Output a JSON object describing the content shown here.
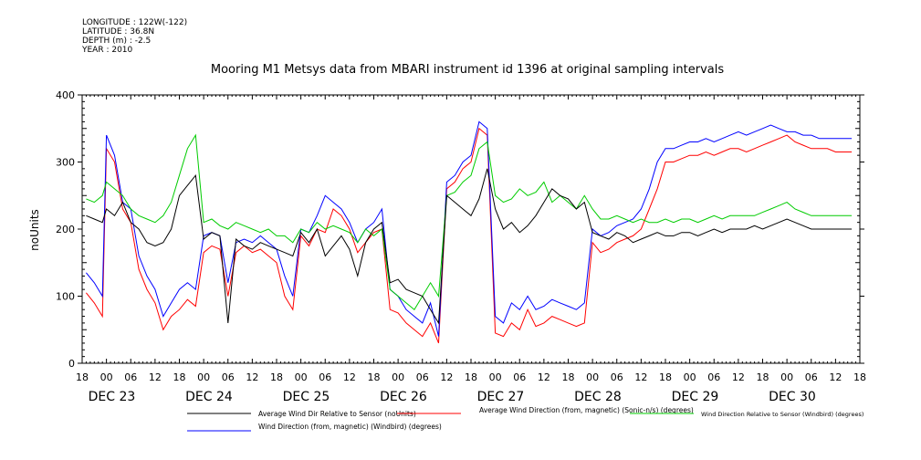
{
  "metadata": {
    "longitude": "LONGITUDE : 122W(-122)",
    "latitude": "LATITUDE : 36.8N",
    "depth": "DEPTH (m) : -2.5",
    "year": "YEAR : 2010"
  },
  "chart_data": {
    "type": "line",
    "title": "Mooring M1 Metsys data from MBARI instrument id 1396 at original sampling intervals",
    "ylabel": "noUnits",
    "ylim": [
      0,
      400
    ],
    "yticks": [
      0,
      100,
      200,
      300,
      400
    ],
    "xlim": [
      -6,
      186
    ],
    "x_unit": "hours since DEC 23 00:00",
    "x_hour_ticks": [
      "18",
      "00",
      "06",
      "12",
      "18",
      "00",
      "06",
      "12",
      "18",
      "00",
      "06",
      "12",
      "18",
      "00",
      "06",
      "12",
      "18",
      "00",
      "06",
      "12",
      "18",
      "00",
      "06",
      "12",
      "18",
      "00",
      "06",
      "12",
      "18",
      "00",
      "06",
      "12",
      "18"
    ],
    "x_day_labels": [
      "DEC 23",
      "DEC 24",
      "DEC 25",
      "DEC 26",
      "DEC 27",
      "DEC 28",
      "DEC 29",
      "DEC 30"
    ],
    "grid": false,
    "legend_placement": "bottom",
    "series": [
      {
        "name": "Average Wind Dir Relative to Sensor (noUnits)",
        "color": "#000000",
        "x": [
          -5,
          -3,
          -1,
          0,
          2,
          4,
          6,
          8,
          10,
          12,
          14,
          16,
          18,
          20,
          22,
          24,
          26,
          28,
          30,
          32,
          34,
          36,
          38,
          40,
          42,
          44,
          46,
          48,
          50,
          52,
          54,
          56,
          58,
          60,
          62,
          64,
          66,
          68,
          70,
          72,
          74,
          76,
          78,
          80,
          82,
          84,
          86,
          88,
          90,
          92,
          94,
          96,
          98,
          100,
          102,
          104,
          106,
          108,
          110,
          112,
          114,
          116,
          118,
          120,
          122,
          124,
          126,
          128,
          130,
          132,
          134,
          136,
          138,
          140,
          142,
          144,
          146,
          148,
          150,
          152,
          154,
          156,
          158,
          160,
          162,
          164,
          166,
          168,
          170,
          172,
          174,
          176,
          178,
          180,
          182,
          184
        ],
        "y": [
          220,
          215,
          210,
          230,
          220,
          240,
          210,
          200,
          180,
          175,
          180,
          200,
          250,
          265,
          280,
          185,
          195,
          190,
          60,
          185,
          175,
          170,
          180,
          175,
          170,
          165,
          160,
          195,
          180,
          200,
          160,
          175,
          190,
          170,
          130,
          180,
          200,
          210,
          120,
          125,
          110,
          105,
          100,
          80,
          60,
          250,
          240,
          230,
          220,
          245,
          290,
          230,
          200,
          210,
          195,
          205,
          220,
          240,
          260,
          250,
          245,
          230,
          240,
          195,
          190,
          185,
          195,
          190,
          180,
          185,
          190,
          195,
          190,
          190,
          195,
          195,
          190,
          195,
          200,
          195,
          200,
          200,
          200,
          205,
          200,
          205,
          210,
          215,
          210,
          205,
          200,
          200,
          200,
          200,
          200,
          200
        ]
      },
      {
        "name": "Average Wind Direction (from, magnetic) (Sonic-n/s) (degrees)",
        "color": "#ff0000",
        "x": [
          -5,
          -3,
          -1,
          0,
          2,
          4,
          6,
          8,
          10,
          12,
          14,
          16,
          18,
          20,
          22,
          24,
          26,
          28,
          30,
          32,
          34,
          36,
          38,
          40,
          42,
          44,
          46,
          48,
          50,
          52,
          54,
          56,
          58,
          60,
          62,
          64,
          66,
          68,
          70,
          72,
          74,
          76,
          78,
          80,
          82,
          84,
          86,
          88,
          90,
          92,
          94,
          96,
          98,
          100,
          102,
          104,
          106,
          108,
          110,
          112,
          114,
          116,
          118,
          120,
          122,
          124,
          126,
          128,
          130,
          132,
          134,
          136,
          138,
          140,
          142,
          144,
          146,
          148,
          150,
          152,
          154,
          156,
          158,
          160,
          162,
          164,
          166,
          168,
          170,
          172,
          174,
          176,
          178,
          180,
          182,
          184
        ],
        "y": [
          105,
          90,
          70,
          320,
          300,
          230,
          210,
          140,
          110,
          90,
          50,
          70,
          80,
          95,
          85,
          165,
          175,
          170,
          100,
          165,
          175,
          165,
          170,
          160,
          150,
          100,
          80,
          190,
          175,
          200,
          195,
          230,
          220,
          200,
          165,
          180,
          195,
          200,
          80,
          75,
          60,
          50,
          40,
          60,
          30,
          260,
          270,
          290,
          300,
          350,
          340,
          45,
          40,
          60,
          50,
          80,
          55,
          60,
          70,
          65,
          60,
          55,
          60,
          180,
          165,
          170,
          180,
          185,
          190,
          200,
          230,
          260,
          300,
          300,
          305,
          310,
          310,
          315,
          310,
          315,
          320,
          320,
          315,
          320,
          325,
          330,
          335,
          340,
          330,
          325,
          320,
          320,
          320,
          315,
          315,
          315
        ]
      },
      {
        "name": "Wind Direction Relative to Sensor (Windbird) (degrees)",
        "color": "#00cc00",
        "x": [
          -5,
          -3,
          -1,
          0,
          2,
          4,
          6,
          8,
          10,
          12,
          14,
          16,
          18,
          20,
          22,
          24,
          26,
          28,
          30,
          32,
          34,
          36,
          38,
          40,
          42,
          44,
          46,
          48,
          50,
          52,
          54,
          56,
          58,
          60,
          62,
          64,
          66,
          68,
          70,
          72,
          74,
          76,
          78,
          80,
          82,
          84,
          86,
          88,
          90,
          92,
          94,
          96,
          98,
          100,
          102,
          104,
          106,
          108,
          110,
          112,
          114,
          116,
          118,
          120,
          122,
          124,
          126,
          128,
          130,
          132,
          134,
          136,
          138,
          140,
          142,
          144,
          146,
          148,
          150,
          152,
          154,
          156,
          158,
          160,
          162,
          164,
          166,
          168,
          170,
          172,
          174,
          176,
          178,
          180,
          182,
          184
        ],
        "y": [
          245,
          240,
          250,
          270,
          260,
          250,
          230,
          220,
          215,
          210,
          220,
          240,
          280,
          320,
          340,
          210,
          215,
          205,
          200,
          210,
          205,
          200,
          195,
          200,
          190,
          190,
          180,
          200,
          195,
          210,
          200,
          205,
          200,
          195,
          180,
          200,
          190,
          200,
          110,
          100,
          90,
          80,
          100,
          120,
          100,
          250,
          255,
          270,
          280,
          320,
          330,
          250,
          240,
          245,
          260,
          250,
          255,
          270,
          240,
          250,
          240,
          230,
          250,
          230,
          215,
          215,
          220,
          215,
          210,
          215,
          210,
          210,
          215,
          210,
          215,
          215,
          210,
          215,
          220,
          215,
          220,
          220,
          220,
          220,
          225,
          230,
          235,
          240,
          230,
          225,
          220,
          220,
          220,
          220,
          220,
          220
        ]
      },
      {
        "name": "Wind Direction (from, magnetic) (Windbird) (degrees)",
        "color": "#0000ff",
        "x": [
          -5,
          -3,
          -1,
          0,
          2,
          4,
          6,
          8,
          10,
          12,
          14,
          16,
          18,
          20,
          22,
          24,
          26,
          28,
          30,
          32,
          34,
          36,
          38,
          40,
          42,
          44,
          46,
          48,
          50,
          52,
          54,
          56,
          58,
          60,
          62,
          64,
          66,
          68,
          70,
          72,
          74,
          76,
          78,
          80,
          82,
          84,
          86,
          88,
          90,
          92,
          94,
          96,
          98,
          100,
          102,
          104,
          106,
          108,
          110,
          112,
          114,
          116,
          118,
          120,
          122,
          124,
          126,
          128,
          130,
          132,
          134,
          136,
          138,
          140,
          142,
          144,
          146,
          148,
          150,
          152,
          154,
          156,
          158,
          160,
          162,
          164,
          166,
          168,
          170,
          172,
          174,
          176,
          178,
          180,
          182,
          184
        ],
        "y": [
          135,
          120,
          100,
          340,
          310,
          240,
          230,
          160,
          130,
          110,
          70,
          90,
          110,
          120,
          110,
          190,
          195,
          190,
          120,
          180,
          185,
          180,
          190,
          180,
          170,
          130,
          100,
          200,
          195,
          220,
          250,
          240,
          230,
          210,
          180,
          200,
          210,
          230,
          110,
          100,
          80,
          70,
          60,
          90,
          40,
          270,
          280,
          300,
          310,
          360,
          350,
          70,
          60,
          90,
          80,
          100,
          80,
          85,
          95,
          90,
          85,
          80,
          90,
          200,
          190,
          195,
          205,
          210,
          215,
          230,
          260,
          300,
          320,
          320,
          325,
          330,
          330,
          335,
          330,
          335,
          340,
          345,
          340,
          345,
          350,
          355,
          350,
          345,
          345,
          340,
          340,
          335,
          335,
          335,
          335,
          335
        ]
      }
    ]
  }
}
